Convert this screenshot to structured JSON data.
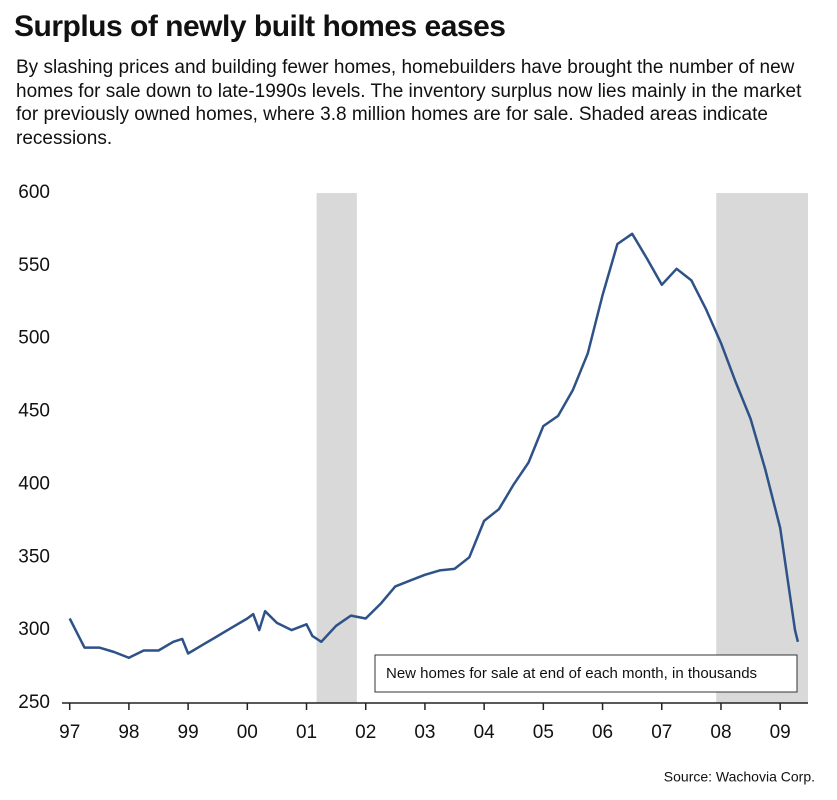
{
  "chart_data": {
    "type": "line",
    "title": "Surplus of newly built homes eases",
    "subtitle": "By slashing prices and building fewer homes, homebuilders have brought the number of new homes for sale down to late-1990s levels. The inventory surplus now lies mainly in the market for previously owned homes, where 3.8 million homes are for sale.  Shaded areas indicate recessions.",
    "note": "New homes for sale at end of each month, in thousands",
    "source": "Source: Wachovia Corp.",
    "x": [
      1997.0,
      1997.1,
      1997.25,
      1997.5,
      1997.75,
      1998.0,
      1998.25,
      1998.5,
      1998.75,
      1998.9,
      1999.0,
      1999.25,
      1999.5,
      1999.75,
      2000.0,
      2000.1,
      2000.2,
      2000.3,
      2000.5,
      2000.75,
      2001.0,
      2001.1,
      2001.25,
      2001.5,
      2001.75,
      2002.0,
      2002.25,
      2002.5,
      2002.75,
      2003.0,
      2003.25,
      2003.5,
      2003.75,
      2004.0,
      2004.25,
      2004.5,
      2004.75,
      2005.0,
      2005.25,
      2005.5,
      2005.75,
      2006.0,
      2006.25,
      2006.5,
      2006.75,
      2007.0,
      2007.25,
      2007.5,
      2007.75,
      2008.0,
      2008.25,
      2008.5,
      2008.75,
      2009.0,
      2009.25,
      2009.3
    ],
    "series": [
      {
        "name": "New homes for sale",
        "color": "#2e5287",
        "values": [
          308,
          300,
          288,
          288,
          285,
          281,
          286,
          286,
          292,
          294,
          284,
          290,
          296,
          302,
          308,
          311,
          300,
          313,
          305,
          300,
          304,
          296,
          292,
          303,
          310,
          308,
          318,
          330,
          334,
          338,
          341,
          342,
          350,
          375,
          383,
          400,
          415,
          440,
          447,
          465,
          490,
          530,
          565,
          572,
          555,
          537,
          548,
          540,
          520,
          497,
          470,
          445,
          410,
          370,
          300,
          292
        ]
      }
    ],
    "recessions": [
      [
        2001.17,
        2001.85
      ],
      [
        2007.92,
        2009.47
      ]
    ],
    "recession_color": "#d9d9d9",
    "xlim": [
      1996.87,
      2009.47
    ],
    "xticks": [
      {
        "value": 1997,
        "label": "97"
      },
      {
        "value": 1998,
        "label": "98"
      },
      {
        "value": 1999,
        "label": "99"
      },
      {
        "value": 2000,
        "label": "00"
      },
      {
        "value": 2001,
        "label": "01"
      },
      {
        "value": 2002,
        "label": "02"
      },
      {
        "value": 2003,
        "label": "03"
      },
      {
        "value": 2004,
        "label": "04"
      },
      {
        "value": 2005,
        "label": "05"
      },
      {
        "value": 2006,
        "label": "06"
      },
      {
        "value": 2007,
        "label": "07"
      },
      {
        "value": 2008,
        "label": "08"
      },
      {
        "value": 2009,
        "label": "09"
      }
    ],
    "ylim": [
      250,
      600
    ],
    "yticks": [
      250,
      300,
      350,
      400,
      450,
      500,
      550,
      600
    ],
    "grid": false
  }
}
